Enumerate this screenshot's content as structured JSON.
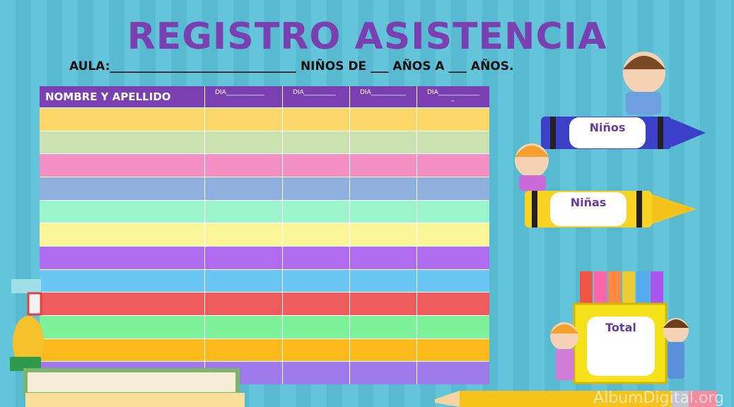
{
  "title": "REGISTRO ASISTENCIA",
  "subline": "AULA:_______________________________  NIÑOS DE ___ AÑOS A ___ AÑOS.",
  "table": {
    "headers": [
      "NOMBRE Y APELLIDO",
      "DIA____________",
      "DIA__________",
      "DIA___________",
      "DIA_____________"
    ],
    "header_extra": "_",
    "row_colors": [
      "#fbd76a",
      "#c9e2b0",
      "#f390c3",
      "#8fb0de",
      "#9bf4cc",
      "#fbf599",
      "#b06cf0",
      "#6ac6f2",
      "#ef5b5b",
      "#7ef29a",
      "#fbb91c",
      "#9e79ec"
    ]
  },
  "labels": {
    "boys": "Niños",
    "girls": "Niñas",
    "total": "Total"
  },
  "watermark": "AlbumDigital.org",
  "colors": {
    "accent": "#7a3fb0",
    "background": "#5ec0d6"
  }
}
